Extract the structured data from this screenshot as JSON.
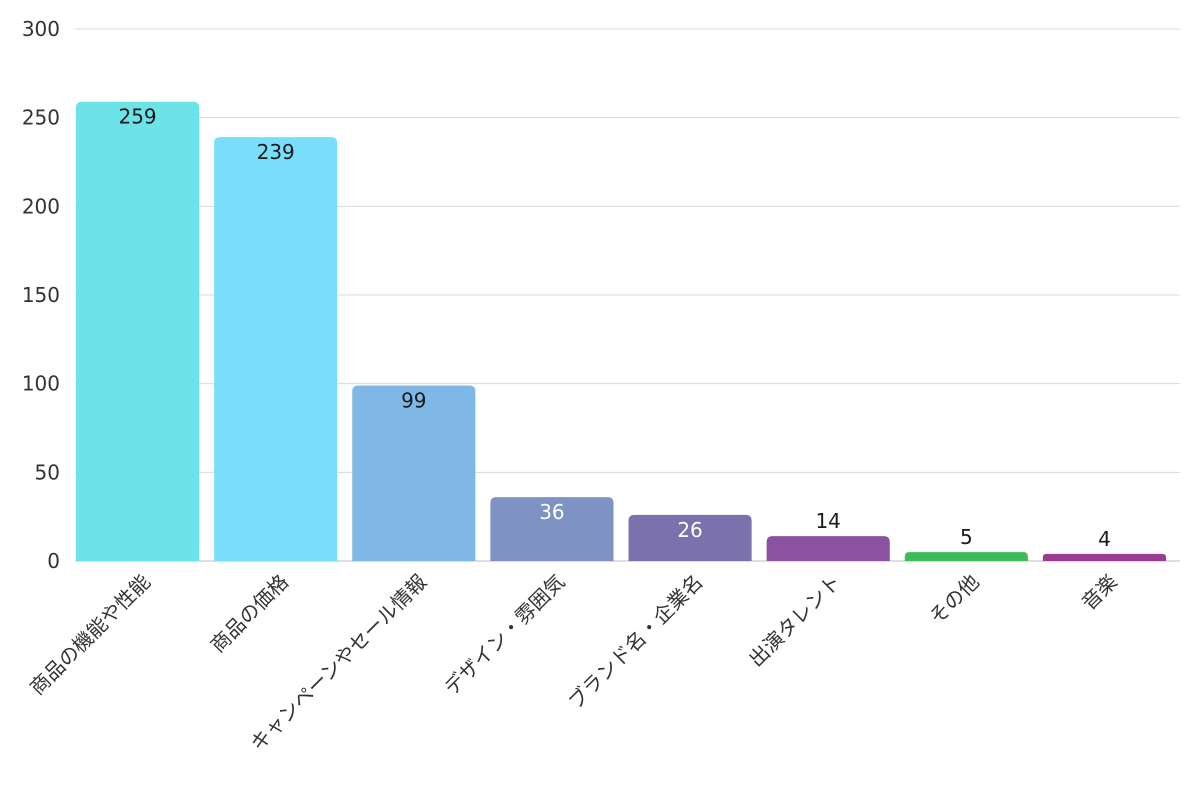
{
  "chart_data": {
    "type": "bar",
    "categories": [
      "商品の機能や性能",
      "商品の価格",
      "キャンペーンやセール情報",
      "デザイン・雰囲気",
      "ブランド名・企業名",
      "出演タレント",
      "その他",
      "音楽"
    ],
    "values": [
      259,
      239,
      99,
      36,
      26,
      14,
      5,
      4
    ],
    "colors": [
      "#6be3e8",
      "#79def9",
      "#7fb7e6",
      "#7f92c4",
      "#7b72ad",
      "#8a52a0",
      "#3dbb5a",
      "#9a3b90"
    ],
    "label_colors": [
      "#1a1a1a",
      "#1a1a1a",
      "#1a1a1a",
      "#ffffff",
      "#ffffff",
      "#1a1a1a",
      "#1a1a1a",
      "#1a1a1a"
    ],
    "label_inside": [
      true,
      true,
      true,
      true,
      true,
      false,
      false,
      false
    ],
    "y_ticks": [
      "0",
      "50",
      "100",
      "150",
      "200",
      "250",
      "300"
    ],
    "ylim": [
      0,
      300
    ],
    "grid": true,
    "legend": "none"
  }
}
